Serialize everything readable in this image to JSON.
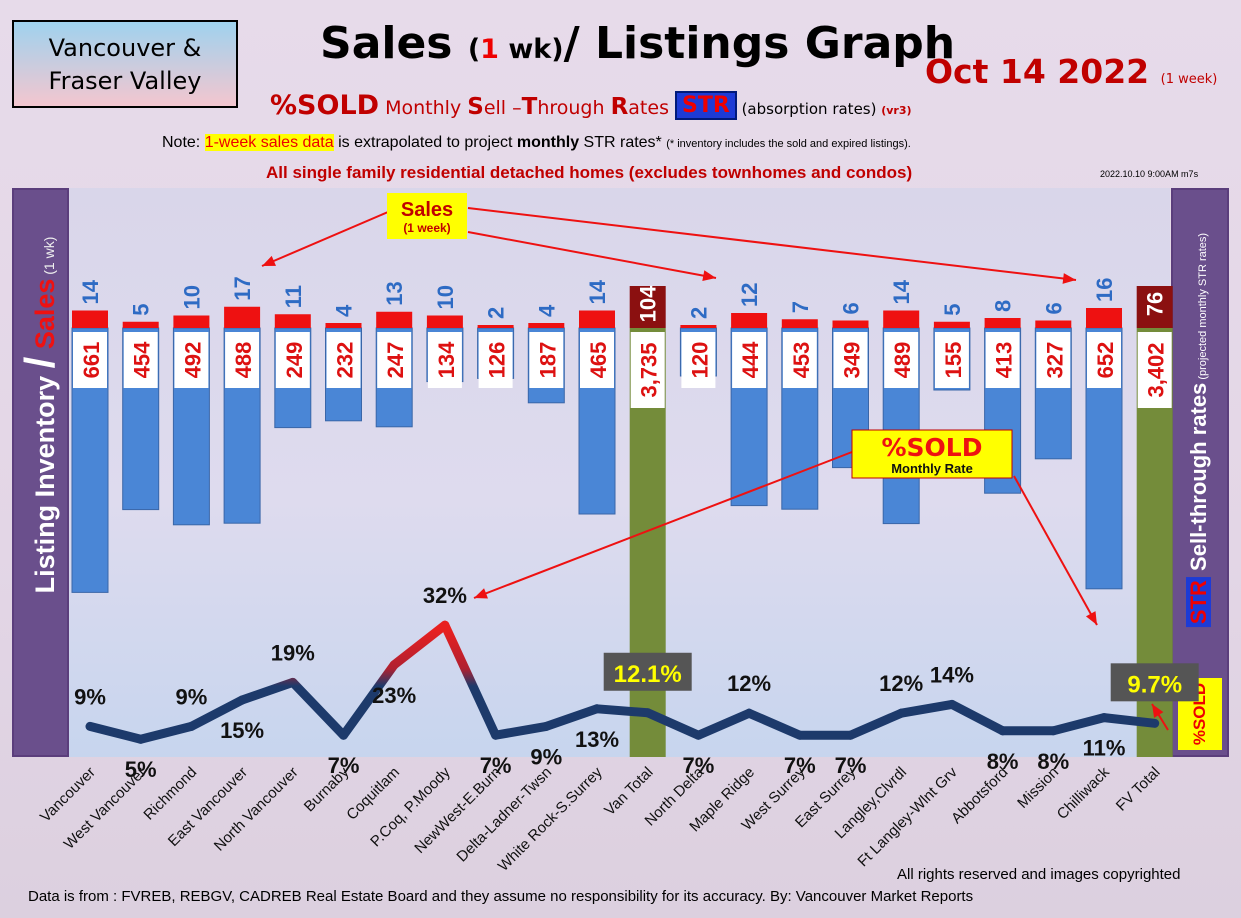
{
  "region": {
    "line1": "Vancouver &",
    "line2": "Fraser Valley"
  },
  "title": {
    "a": "Sales",
    "b": "(",
    "c": "1",
    "d": " wk)",
    "e": "/ Listings Graph"
  },
  "date": {
    "text": "Oct 14  2022",
    "suffix": "(1 week)"
  },
  "subtitle": {
    "pct": "%SOLD",
    "monthly": " Monthly ",
    "s": "S",
    "ell": "ell –",
    "t": "T",
    "hrough": "hrough ",
    "r": "R",
    "ates": "ates ",
    "str": "STR",
    "abs": " (absorption rates) ",
    "vr": "(vr3)"
  },
  "note": {
    "a": "Note: ",
    "hl": "1-week sales data",
    "b": " is extrapolated to project ",
    "bold": "monthly",
    "c": " STR rates* ",
    "small": "(* inventory includes the sold and expired listings)."
  },
  "scope": "All single family residential detached homes (excludes townhomes and condos)",
  "stamp": "2022.10.10 9:00AM m7s",
  "left_label": {
    "a": "Listing Inventory ",
    "slash": "/",
    "b": " Sales",
    "c": " (1 wk)"
  },
  "right_label": {
    "str": "STR",
    "a": " Sell-through rates",
    "b": " (projected monthly STR rates)"
  },
  "callouts": {
    "sales": "Sales",
    "sales_sub": "(1 week)",
    "sold": "%SOLD",
    "sold_sub": "Monthly Rate"
  },
  "badge": "%SOLD",
  "footer": {
    "rights": "All rights reserved and  images copyrighted",
    "source": "Data is from : FVREB, REBGV, CADREB Real Estate Board and they assume no responsibility for its accuracy. By: Vancouver Market Reports"
  },
  "colors": {
    "listing_bar": "#4a86d6",
    "total_bar": "#748c3a",
    "sales_bar": "#ee1111",
    "total_sales_bar": "#8b1010",
    "label_blue": "#2e6bc4",
    "label_red": "#dd1111",
    "line_low": "#1d3a6b",
    "line_high": "#e82020"
  },
  "chart_data": {
    "type": "bar",
    "categories": [
      "Vancouver",
      "West Vancouver",
      "Richmond",
      "East Vancouver",
      "North Vancouver",
      "Burnaby",
      "Coquitlam",
      "P.Coq, P.Moody",
      "NewWest-E.Burn",
      "Delta-Ladner-Twsn",
      "White Rock-S.Surrey",
      "Van Total",
      "North Delta",
      "Maple Ridge",
      "West Surrey",
      "East Surrey",
      "Langley,Clvrdl",
      "Ft Langley-Wlnt Grv",
      "Abbotsford",
      "Mission",
      "Chilliwack",
      "FV Total"
    ],
    "series": [
      {
        "values": [
          661,
          454,
          492,
          488,
          249,
          232,
          247,
          134,
          126,
          187,
          465,
          3735,
          120,
          444,
          453,
          349,
          489,
          155,
          413,
          327,
          652,
          3402
        ]
      },
      {
        "values": [
          14,
          5,
          10,
          17,
          11,
          4,
          13,
          10,
          2,
          4,
          14,
          104,
          2,
          12,
          7,
          6,
          14,
          5,
          8,
          6,
          16,
          76
        ]
      },
      {
        "values": [
          9,
          5,
          9,
          15,
          19,
          7,
          23,
          32,
          7,
          9,
          13,
          12.1,
          7,
          12,
          7,
          7,
          12,
          14,
          8,
          8,
          11,
          9.7
        ]
      }
    ],
    "listing_labels": [
      "661",
      "454",
      "492",
      "488",
      "249",
      "232",
      "247",
      "134",
      "126",
      "187",
      "465",
      "3,735",
      "120",
      "444",
      "453",
      "349",
      "489",
      "155",
      "413",
      "327",
      "652",
      "3,402"
    ],
    "sales_labels": [
      "14",
      "5",
      "10",
      "17",
      "11",
      "4",
      "13",
      "10",
      "2",
      "4",
      "14",
      "104",
      "2",
      "12",
      "7",
      "6",
      "14",
      "5",
      "8",
      "6",
      "16",
      "76"
    ],
    "pct_labels": [
      "9%",
      "5%",
      "9%",
      "15%",
      "19%",
      "7%",
      "23%",
      "32%",
      "7%",
      "9%",
      "13%",
      "12.1%",
      "7%",
      "12%",
      "7%",
      "7%",
      "12%",
      "14%",
      "8%",
      "8%",
      "11%",
      "9.7%"
    ],
    "totals": [
      "Van Total",
      "FV Total"
    ]
  }
}
